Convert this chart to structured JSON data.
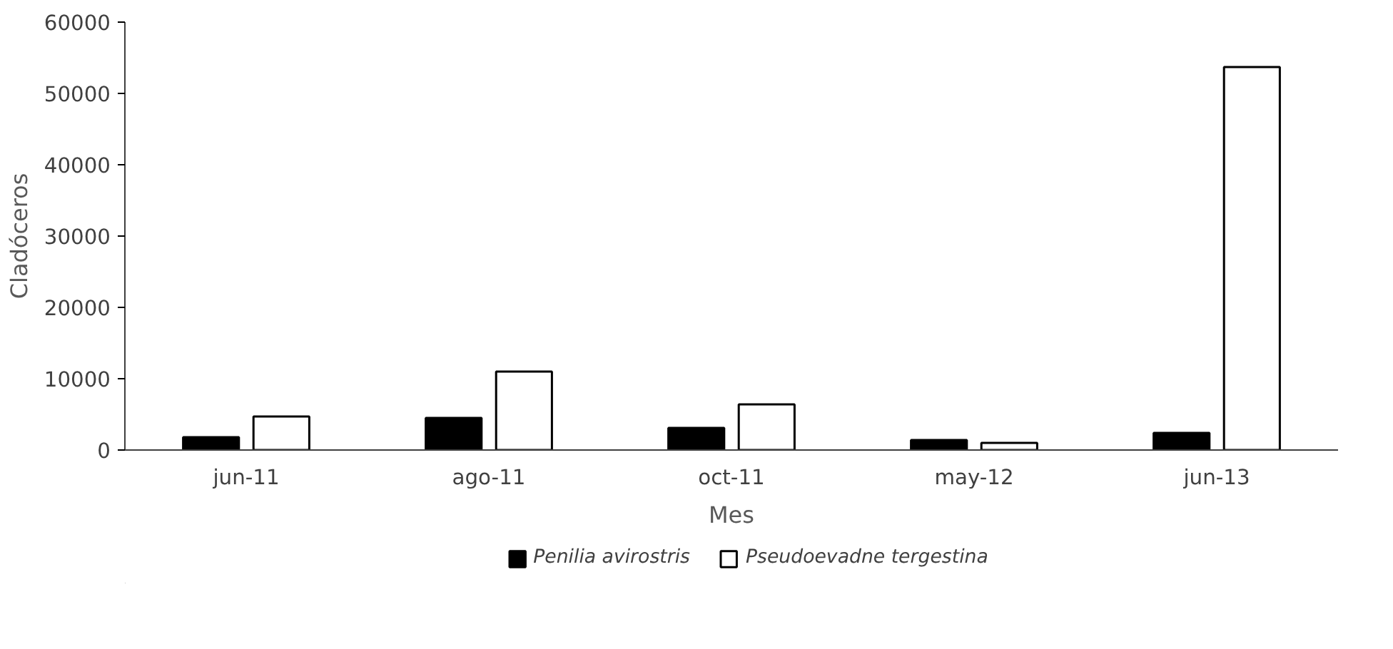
{
  "chart_data": {
    "type": "bar",
    "xlabel": "Mes",
    "ylabel": "Cladóceros",
    "categories": [
      "jun-11",
      "ago-11",
      "oct-11",
      "may-12",
      "jun-13"
    ],
    "series": [
      {
        "name": "Penilia avirostris",
        "color": "#000000",
        "values": [
          1800,
          4500,
          3100,
          1400,
          2400
        ]
      },
      {
        "name": "Pseudoevadne tergestina",
        "color": "#ffffff",
        "values": [
          4700,
          11000,
          6400,
          1000,
          53700
        ]
      }
    ],
    "ylim": [
      0,
      60000
    ],
    "yticks": [
      0,
      10000,
      20000,
      30000,
      40000,
      50000,
      60000
    ],
    "grid": false,
    "legend": "bottom"
  }
}
